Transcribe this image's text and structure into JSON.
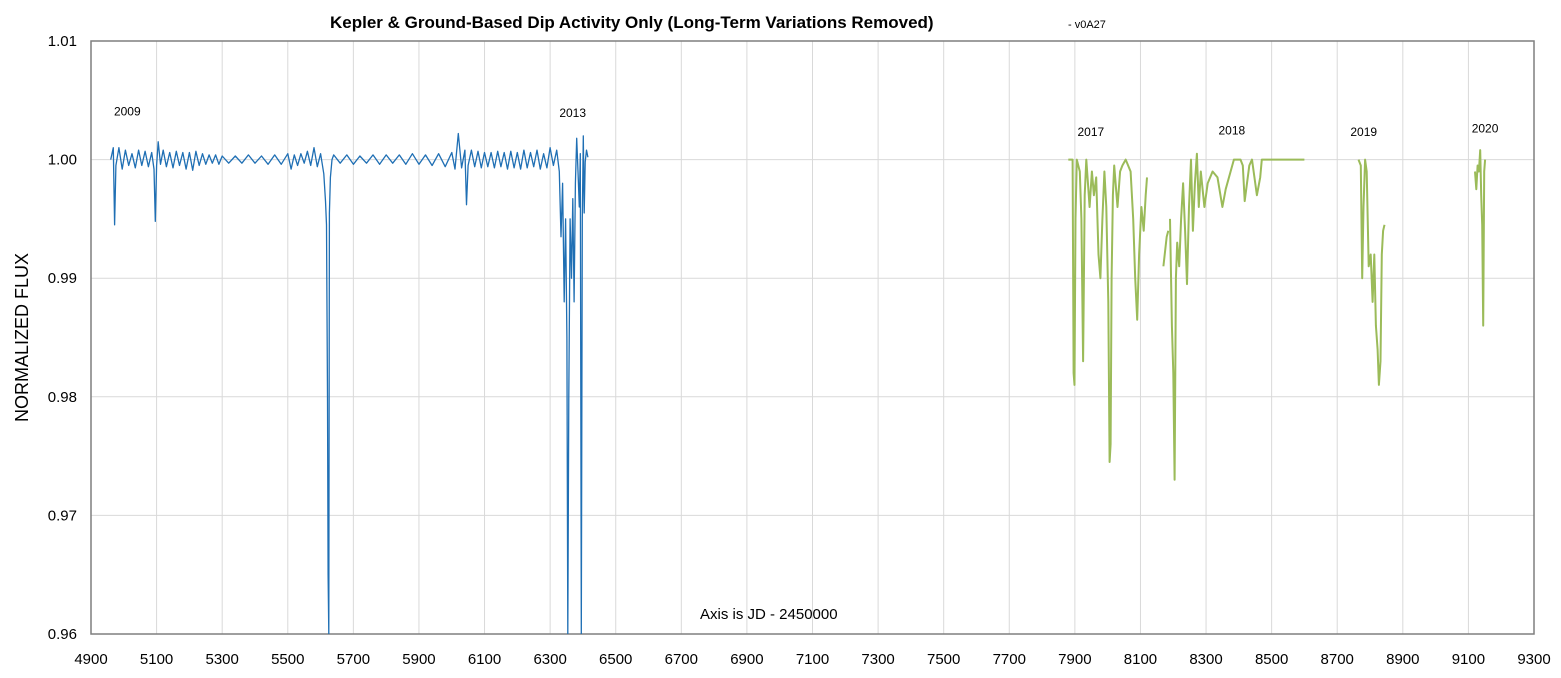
{
  "chart_data": {
    "type": "line",
    "title": "Kepler & Ground-Based Dip Activity Only (Long-Term Variations Removed)",
    "subtitle": "- v0A27",
    "xlabel": "Axis is JD - 2450000",
    "ylabel": "NORMALIZED FLUX",
    "xlim": [
      4900,
      9300
    ],
    "ylim": [
      0.96,
      1.01
    ],
    "xticks": [
      4900,
      5100,
      5300,
      5500,
      5700,
      5900,
      6100,
      6300,
      6500,
      6700,
      6900,
      7100,
      7300,
      7500,
      7700,
      7900,
      8100,
      8300,
      8500,
      8700,
      8900,
      9100,
      9300
    ],
    "xtick_labels": [
      "4900",
      "5100",
      "5300",
      "5500",
      "5700",
      "5900",
      "6100",
      "6300",
      "6500",
      "6700",
      "6900",
      "7100",
      "7300",
      "7500",
      "7700",
      "7900",
      "8100",
      "8300",
      "8500",
      "8700",
      "8900",
      "9100",
      "9300"
    ],
    "yticks": [
      0.96,
      0.97,
      0.98,
      0.99,
      1.0,
      1.01
    ],
    "ytick_labels": [
      "0.96",
      "0.97",
      "0.98",
      "0.99",
      "1.00",
      "1.01"
    ],
    "grid": true,
    "colors": {
      "kepler": "#1f6fb4",
      "ground": "#9bbb59"
    },
    "annotations": [
      {
        "text": "2009",
        "x": 4970,
        "y": 1.0037
      },
      {
        "text": "2013",
        "x": 6328,
        "y": 1.0036
      },
      {
        "text": "2017",
        "x": 7908,
        "y": 1.002
      },
      {
        "text": "2018",
        "x": 8338,
        "y": 1.0021
      },
      {
        "text": "2019",
        "x": 8740,
        "y": 1.002
      },
      {
        "text": "2020",
        "x": 9110,
        "y": 1.0023
      }
    ],
    "series": [
      {
        "color": "#1f6fb4",
        "points": [
          [
            4960,
            1.0
          ],
          [
            4968,
            1.001
          ],
          [
            4972,
            0.9945
          ],
          [
            4976,
            0.9995
          ],
          [
            4985,
            1.001
          ],
          [
            4995,
            0.9992
          ],
          [
            5005,
            1.0008
          ],
          [
            5015,
            0.9995
          ],
          [
            5025,
            1.0005
          ],
          [
            5035,
            0.9993
          ],
          [
            5045,
            1.0008
          ],
          [
            5055,
            0.9995
          ],
          [
            5065,
            1.0007
          ],
          [
            5075,
            0.9994
          ],
          [
            5085,
            1.0006
          ],
          [
            5092,
            0.9992
          ],
          [
            5096,
            0.9948
          ],
          [
            5100,
            0.9995
          ],
          [
            5105,
            1.0015
          ],
          [
            5112,
            0.9996
          ],
          [
            5120,
            1.0008
          ],
          [
            5130,
            0.9994
          ],
          [
            5140,
            1.0006
          ],
          [
            5150,
            0.9993
          ],
          [
            5160,
            1.0007
          ],
          [
            5170,
            0.9995
          ],
          [
            5180,
            1.0006
          ],
          [
            5190,
            0.9992
          ],
          [
            5200,
            1.0006
          ],
          [
            5210,
            0.9991
          ],
          [
            5220,
            1.0007
          ],
          [
            5230,
            0.9995
          ],
          [
            5240,
            1.0005
          ],
          [
            5250,
            0.9996
          ],
          [
            5260,
            1.0004
          ],
          [
            5270,
            0.9997
          ],
          [
            5280,
            1.0004
          ],
          [
            5290,
            0.9996
          ],
          [
            5300,
            1.0003
          ],
          [
            5320,
            0.9997
          ],
          [
            5340,
            1.0003
          ],
          [
            5360,
            0.9997
          ],
          [
            5380,
            1.0004
          ],
          [
            5400,
            0.9997
          ],
          [
            5420,
            1.0003
          ],
          [
            5440,
            0.9996
          ],
          [
            5460,
            1.0004
          ],
          [
            5480,
            0.9996
          ],
          [
            5500,
            1.0005
          ],
          [
            5510,
            0.9992
          ],
          [
            5520,
            1.0004
          ],
          [
            5530,
            0.9995
          ],
          [
            5540,
            1.0005
          ],
          [
            5550,
            0.9997
          ],
          [
            5560,
            1.0007
          ],
          [
            5570,
            0.9995
          ],
          [
            5580,
            1.001
          ],
          [
            5590,
            0.9994
          ],
          [
            5600,
            1.0005
          ],
          [
            5610,
            0.9988
          ],
          [
            5615,
            0.9965
          ],
          [
            5618,
            0.9945
          ],
          [
            5621,
            0.98
          ],
          [
            5623,
            0.965
          ],
          [
            5625,
            0.96
          ],
          [
            5627,
            0.9955
          ],
          [
            5630,
            0.9985
          ],
          [
            5635,
            1.0
          ],
          [
            5640,
            1.0004
          ],
          [
            5660,
            0.9997
          ],
          [
            5680,
            1.0004
          ],
          [
            5700,
            0.9996
          ],
          [
            5720,
            1.0003
          ],
          [
            5740,
            0.9997
          ],
          [
            5760,
            1.0004
          ],
          [
            5780,
            0.9996
          ],
          [
            5800,
            1.0004
          ],
          [
            5820,
            0.9997
          ],
          [
            5840,
            1.0004
          ],
          [
            5860,
            0.9996
          ],
          [
            5880,
            1.0005
          ],
          [
            5900,
            0.9996
          ],
          [
            5920,
            1.0004
          ],
          [
            5940,
            0.9995
          ],
          [
            5960,
            1.0005
          ],
          [
            5980,
            0.9994
          ],
          [
            6000,
            1.0006
          ],
          [
            6010,
            0.9992
          ],
          [
            6020,
            1.0022
          ],
          [
            6030,
            0.9993
          ],
          [
            6040,
            1.0008
          ],
          [
            6045,
            0.9962
          ],
          [
            6050,
            0.9995
          ],
          [
            6060,
            1.0008
          ],
          [
            6070,
            0.9994
          ],
          [
            6080,
            1.0007
          ],
          [
            6090,
            0.9993
          ],
          [
            6100,
            1.0006
          ],
          [
            6110,
            0.9994
          ],
          [
            6120,
            1.0006
          ],
          [
            6130,
            0.9993
          ],
          [
            6140,
            1.0007
          ],
          [
            6150,
            0.9994
          ],
          [
            6160,
            1.0006
          ],
          [
            6170,
            0.9992
          ],
          [
            6180,
            1.0007
          ],
          [
            6190,
            0.9993
          ],
          [
            6200,
            1.0006
          ],
          [
            6210,
            0.9992
          ],
          [
            6220,
            1.0008
          ],
          [
            6230,
            0.9993
          ],
          [
            6240,
            1.0006
          ],
          [
            6250,
            0.9994
          ],
          [
            6260,
            1.0008
          ],
          [
            6270,
            0.9992
          ],
          [
            6280,
            1.0005
          ],
          [
            6290,
            0.9993
          ],
          [
            6300,
            1.001
          ],
          [
            6310,
            0.9995
          ],
          [
            6320,
            1.0008
          ],
          [
            6328,
            0.999
          ],
          [
            6333,
            0.9935
          ],
          [
            6338,
            0.998
          ],
          [
            6343,
            0.988
          ],
          [
            6347,
            0.995
          ],
          [
            6351,
            0.985
          ],
          [
            6354,
            0.96
          ],
          [
            6357,
            0.98
          ],
          [
            6361,
            0.995
          ],
          [
            6365,
            0.99
          ],
          [
            6369,
            0.9967
          ],
          [
            6373,
            0.988
          ],
          [
            6377,
            0.998
          ],
          [
            6381,
            1.0018
          ],
          [
            6385,
            0.999
          ],
          [
            6389,
            0.996
          ],
          [
            6392,
            1.0005
          ],
          [
            6395,
            0.96
          ],
          [
            6398,
            0.995
          ],
          [
            6401,
            1.002
          ],
          [
            6404,
            0.9955
          ],
          [
            6407,
            0.9998
          ],
          [
            6411,
            1.0008
          ],
          [
            6415,
            1.0002
          ]
        ]
      },
      {
        "color": "#9bbb59",
        "points": [
          [
            7880,
            1.0
          ],
          [
            7893,
            1.0
          ],
          [
            7896,
            0.982
          ],
          [
            7899,
            0.981
          ],
          [
            7902,
            0.995
          ],
          [
            7906,
            1.0
          ],
          [
            7915,
            0.999
          ],
          [
            7920,
            0.995
          ],
          [
            7925,
            0.983
          ],
          [
            7930,
            0.997
          ],
          [
            7935,
            1.0
          ],
          [
            7945,
            0.996
          ],
          [
            7952,
            0.999
          ],
          [
            7958,
            0.997
          ],
          [
            7965,
            0.9985
          ],
          [
            7972,
            0.992
          ],
          [
            7978,
            0.99
          ],
          [
            7984,
            0.995
          ],
          [
            7990,
            0.999
          ],
          [
            7996,
            0.996
          ],
          [
            8002,
            0.988
          ],
          [
            8006,
            0.9745
          ],
          [
            8009,
            0.976
          ],
          [
            8012,
            0.99
          ],
          [
            8016,
            0.997
          ],
          [
            8020,
            0.9995
          ],
          [
            8030,
            0.996
          ],
          [
            8038,
            0.999
          ],
          [
            8045,
            0.9995
          ],
          [
            8055,
            1.0
          ],
          [
            8070,
            0.999
          ],
          [
            8078,
            0.995
          ],
          [
            8084,
            0.99
          ],
          [
            8090,
            0.9865
          ],
          [
            8096,
            0.992
          ],
          [
            8103,
            0.996
          ],
          [
            8110,
            0.994
          ],
          [
            8116,
            0.997
          ],
          [
            8120,
            0.9985
          ]
        ]
      },
      {
        "color": "#9bbb59",
        "points": [
          [
            8170,
            0.991
          ],
          [
            8180,
            0.9935
          ],
          [
            8185,
            0.994
          ]
        ]
      },
      {
        "color": "#9bbb59",
        "points": [
          [
            8190,
            0.995
          ],
          [
            8196,
            0.986
          ],
          [
            8200,
            0.982
          ],
          [
            8204,
            0.973
          ],
          [
            8208,
            0.99
          ],
          [
            8212,
            0.993
          ],
          [
            8218,
            0.991
          ],
          [
            8224,
            0.995
          ],
          [
            8230,
            0.998
          ],
          [
            8236,
            0.994
          ],
          [
            8242,
            0.9895
          ],
          [
            8248,
            0.996
          ],
          [
            8254,
            1.0
          ],
          [
            8260,
            0.994
          ],
          [
            8266,
            0.998
          ],
          [
            8272,
            1.0005
          ],
          [
            8278,
            0.996
          ],
          [
            8284,
            0.999
          ],
          [
            8295,
            0.996
          ],
          [
            8305,
            0.998
          ],
          [
            8320,
            0.999
          ],
          [
            8335,
            0.9985
          ],
          [
            8350,
            0.996
          ],
          [
            8360,
            0.9975
          ],
          [
            8375,
            0.999
          ],
          [
            8385,
            1.0
          ],
          [
            8405,
            1.0
          ],
          [
            8412,
            0.9995
          ],
          [
            8418,
            0.9965
          ],
          [
            8425,
            0.998
          ],
          [
            8432,
            0.9995
          ],
          [
            8440,
            1.0
          ],
          [
            8455,
            0.997
          ],
          [
            8465,
            0.9985
          ],
          [
            8470,
            1.0
          ],
          [
            8500,
            1.0
          ],
          [
            8550,
            1.0
          ],
          [
            8600,
            1.0
          ]
        ]
      },
      {
        "color": "#9bbb59",
        "points": [
          [
            8765,
            1.0
          ],
          [
            8772,
            0.9995
          ],
          [
            8776,
            0.99
          ],
          [
            8780,
            0.996
          ],
          [
            8785,
            1.0
          ],
          [
            8790,
            0.999
          ],
          [
            8796,
            0.991
          ],
          [
            8802,
            0.992
          ],
          [
            8808,
            0.988
          ],
          [
            8813,
            0.992
          ],
          [
            8818,
            0.986
          ],
          [
            8823,
            0.984
          ],
          [
            8827,
            0.981
          ],
          [
            8832,
            0.983
          ],
          [
            8836,
            0.992
          ],
          [
            8840,
            0.994
          ],
          [
            8844,
            0.9945
          ]
        ]
      },
      {
        "color": "#9bbb59",
        "points": [
          [
            9120,
            0.999
          ],
          [
            9124,
            0.9975
          ],
          [
            9128,
            0.9995
          ],
          [
            9132,
            0.999
          ],
          [
            9136,
            1.0008
          ],
          [
            9139,
            0.997
          ],
          [
            9142,
            0.9945
          ],
          [
            9145,
            0.986
          ],
          [
            9148,
            0.999
          ],
          [
            9151,
            1.0
          ]
        ]
      }
    ]
  }
}
